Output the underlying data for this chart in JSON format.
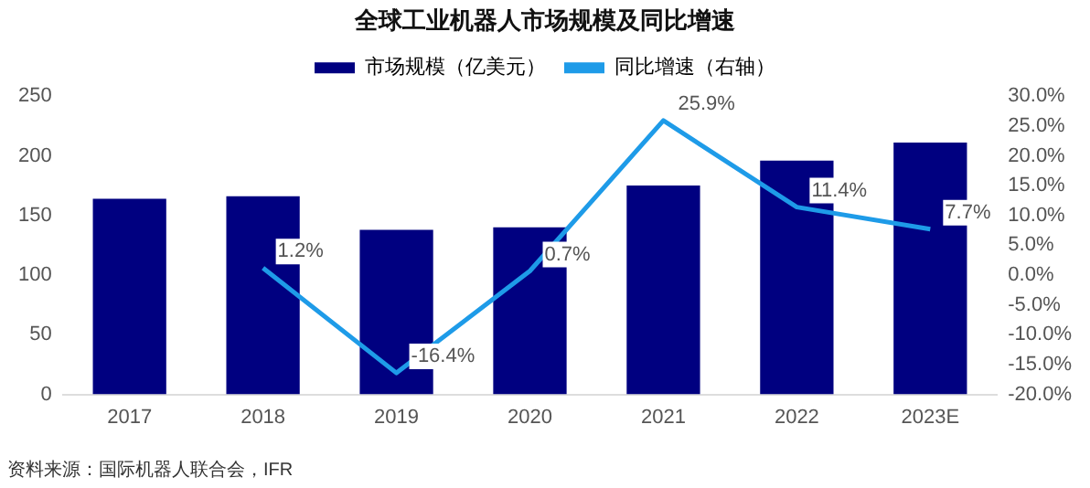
{
  "chart_data": {
    "type": "bar",
    "title": "全球工业机器人市场规模及同比增速",
    "categories": [
      "2017",
      "2018",
      "2019",
      "2020",
      "2021",
      "2022",
      "2023E"
    ],
    "series": [
      {
        "name": "市场规模（亿美元）",
        "color": "#000080",
        "values": [
          164,
          166,
          138,
          140,
          175,
          196,
          211
        ]
      },
      {
        "name": "同比增速（右轴）",
        "type": "line",
        "axis": "y2",
        "color": "#1e9be8",
        "values": [
          null,
          1.2,
          -16.4,
          0.7,
          25.9,
          11.4,
          7.7
        ],
        "value_labels": [
          null,
          "1.2%",
          "-16.4%",
          "0.7%",
          "25.9%",
          "11.4%",
          "7.7%"
        ]
      }
    ],
    "ylim": [
      0,
      250
    ],
    "yticks": [
      0,
      50,
      100,
      150,
      200,
      250
    ],
    "y2lim": [
      -20,
      30
    ],
    "y2ticks": [
      {
        "value": -20,
        "label": "-20.0%"
      },
      {
        "value": -15,
        "label": "-15.0%"
      },
      {
        "value": -10,
        "label": "-10.0%"
      },
      {
        "value": -5,
        "label": "-5.0%"
      },
      {
        "value": 0,
        "label": "0.0%"
      },
      {
        "value": 5,
        "label": "5.0%"
      },
      {
        "value": 10,
        "label": "10.0%"
      },
      {
        "value": 15,
        "label": "15.0%"
      },
      {
        "value": 20,
        "label": "20.0%"
      },
      {
        "value": 25,
        "label": "25.0%"
      },
      {
        "value": 30,
        "label": "30.0%"
      }
    ],
    "grid": false,
    "legend": "top",
    "marker": "none",
    "line_style": "solid",
    "annotations": [
      "资料来源：国际机器人联合会，IFR"
    ]
  }
}
